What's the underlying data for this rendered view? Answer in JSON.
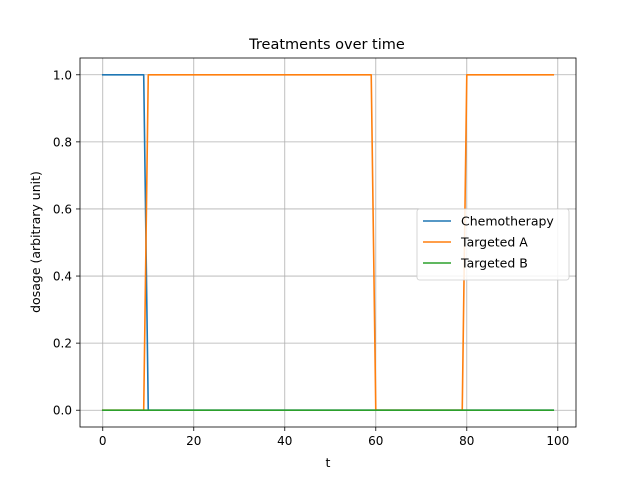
{
  "chart_data": {
    "type": "line",
    "title": "Treatments over time",
    "xlabel": "t",
    "ylabel": "dosage (arbitrary unit)",
    "xlim": [
      -5,
      104
    ],
    "ylim": [
      -0.05,
      1.05
    ],
    "xticks": [
      0,
      20,
      40,
      60,
      80,
      100
    ],
    "yticks": [
      0.0,
      0.2,
      0.4,
      0.6,
      0.8,
      1.0
    ],
    "xtick_labels": [
      "0",
      "20",
      "40",
      "60",
      "80",
      "100"
    ],
    "ytick_labels": [
      "0.0",
      "0.2",
      "0.4",
      "0.6",
      "0.8",
      "1.0"
    ],
    "grid": true,
    "legend_position": "center-right",
    "series": [
      {
        "name": "Chemotherapy",
        "color": "#1f77b4",
        "points": [
          [
            0,
            1
          ],
          [
            9,
            1
          ],
          [
            10,
            0
          ],
          [
            99,
            0
          ]
        ]
      },
      {
        "name": "Targeted A",
        "color": "#ff7f0e",
        "points": [
          [
            0,
            0
          ],
          [
            9,
            0
          ],
          [
            10,
            1
          ],
          [
            59,
            1
          ],
          [
            60,
            0
          ],
          [
            79,
            0
          ],
          [
            80,
            1
          ],
          [
            99,
            1
          ]
        ]
      },
      {
        "name": "Targeted B",
        "color": "#2ca02c",
        "points": [
          [
            0,
            0
          ],
          [
            99,
            0
          ]
        ]
      }
    ]
  }
}
